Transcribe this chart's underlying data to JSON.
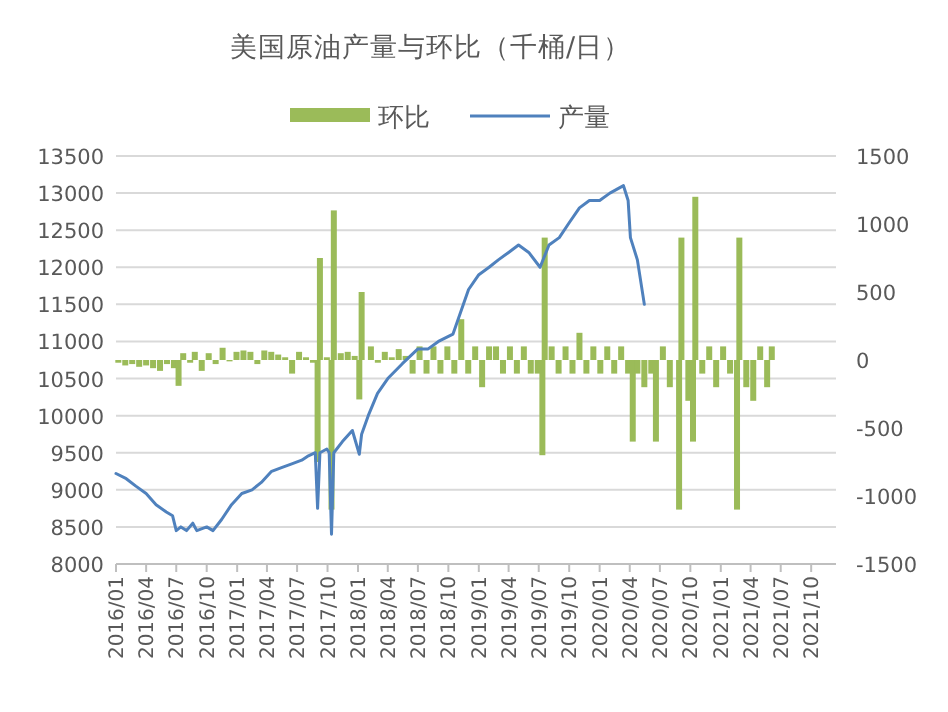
{
  "chart_data": {
    "type": "bar",
    "title": "美国原油产量与环比（千桶/日）",
    "xlim": [
      "2016-01-01",
      "2021-12-15"
    ],
    "xticks": [
      {
        "value": "2016-01-01",
        "label": "2016/01"
      },
      {
        "value": "2016-04-01",
        "label": "2016/04"
      },
      {
        "value": "2016-07-01",
        "label": "2016/07"
      },
      {
        "value": "2016-10-01",
        "label": "2016/10"
      },
      {
        "value": "2017-01-01",
        "label": "2017/01"
      },
      {
        "value": "2017-04-01",
        "label": "2017/04"
      },
      {
        "value": "2017-07-01",
        "label": "2017/07"
      },
      {
        "value": "2017-10-01",
        "label": "2017/10"
      },
      {
        "value": "2018-01-01",
        "label": "2018/01"
      },
      {
        "value": "2018-04-01",
        "label": "2018/04"
      },
      {
        "value": "2018-07-01",
        "label": "2018/07"
      },
      {
        "value": "2018-10-01",
        "label": "2018/10"
      },
      {
        "value": "2019-01-01",
        "label": "2019/01"
      },
      {
        "value": "2019-04-01",
        "label": "2019/04"
      },
      {
        "value": "2019-07-01",
        "label": "2019/07"
      },
      {
        "value": "2019-10-01",
        "label": "2019/10"
      },
      {
        "value": "2020-01-01",
        "label": "2020/01"
      },
      {
        "value": "2020-04-01",
        "label": "2020/04"
      },
      {
        "value": "2020-07-01",
        "label": "2020/07"
      },
      {
        "value": "2020-10-01",
        "label": "2020/10"
      },
      {
        "value": "2021-01-01",
        "label": "2021/01"
      },
      {
        "value": "2021-04-01",
        "label": "2021/04"
      },
      {
        "value": "2021-07-01",
        "label": "2021/07"
      },
      {
        "value": "2021-10-01",
        "label": "2021/10"
      }
    ],
    "ylim": [
      8000,
      13500
    ],
    "yticks": [
      8000,
      8500,
      9000,
      9500,
      10000,
      10500,
      11000,
      11500,
      12000,
      12500,
      13000,
      13500
    ],
    "y2lim": [
      -1500,
      1500
    ],
    "y2ticks": [
      -1500,
      -1000,
      -500,
      0,
      500,
      1000,
      1500
    ],
    "grid": "y",
    "legend": "top",
    "series": [
      {
        "name": "环比",
        "axis": "y2",
        "color": "#9bbb59",
        "x": [
          "2016-01-08",
          "2016-01-29",
          "2016-02-19",
          "2016-03-11",
          "2016-04-01",
          "2016-04-22",
          "2016-05-13",
          "2016-06-03",
          "2016-06-24",
          "2016-07-08",
          "2016-07-22",
          "2016-08-12",
          "2016-08-26",
          "2016-09-16",
          "2016-10-07",
          "2016-10-28",
          "2016-11-18",
          "2016-12-09",
          "2016-12-30",
          "2017-01-20",
          "2017-02-10",
          "2017-03-03",
          "2017-03-24",
          "2017-04-14",
          "2017-05-05",
          "2017-05-26",
          "2017-06-16",
          "2017-07-07",
          "2017-07-28",
          "2017-08-18",
          "2017-09-01",
          "2017-09-08",
          "2017-09-29",
          "2017-10-13",
          "2017-10-20",
          "2017-11-10",
          "2017-12-01",
          "2017-12-22",
          "2018-01-05",
          "2018-01-12",
          "2018-02-09",
          "2018-03-02",
          "2018-03-23",
          "2018-04-13",
          "2018-05-04",
          "2018-05-25",
          "2018-06-15",
          "2018-07-06",
          "2018-07-27",
          "2018-08-17",
          "2018-09-07",
          "2018-09-28",
          "2018-10-19",
          "2018-11-09",
          "2018-11-30",
          "2018-12-21",
          "2019-01-11",
          "2019-02-01",
          "2019-02-22",
          "2019-03-15",
          "2019-04-05",
          "2019-04-26",
          "2019-05-17",
          "2019-06-07",
          "2019-06-28",
          "2019-07-12",
          "2019-07-19",
          "2019-08-09",
          "2019-08-30",
          "2019-09-20",
          "2019-10-11",
          "2019-11-01",
          "2019-11-22",
          "2019-12-13",
          "2020-01-03",
          "2020-01-24",
          "2020-02-14",
          "2020-03-06",
          "2020-03-27",
          "2020-04-10",
          "2020-04-24",
          "2020-05-15",
          "2020-06-05",
          "2020-06-19",
          "2020-07-10",
          "2020-07-31",
          "2020-08-28",
          "2020-09-04",
          "2020-09-25",
          "2020-10-09",
          "2020-10-16",
          "2020-11-06",
          "2020-11-27",
          "2020-12-18",
          "2021-01-08",
          "2021-01-29",
          "2021-02-19",
          "2021-02-26",
          "2021-03-19",
          "2021-04-09",
          "2021-04-30",
          "2021-05-21",
          "2021-06-04"
        ],
        "values": [
          -20,
          -40,
          -30,
          -50,
          -40,
          -60,
          -80,
          -30,
          -60,
          -190,
          50,
          -20,
          60,
          -80,
          50,
          -30,
          90,
          -10,
          60,
          70,
          60,
          -30,
          70,
          60,
          40,
          20,
          -100,
          60,
          20,
          -20,
          -750,
          750,
          20,
          -1100,
          1100,
          50,
          60,
          30,
          -290,
          500,
          100,
          -20,
          60,
          20,
          80,
          30,
          -100,
          100,
          -100,
          100,
          -100,
          100,
          -100,
          300,
          -100,
          100,
          -200,
          100,
          100,
          -100,
          100,
          -100,
          100,
          -100,
          -100,
          -700,
          900,
          100,
          -100,
          100,
          -100,
          200,
          -100,
          100,
          -100,
          100,
          -100,
          100,
          -100,
          -600,
          -100,
          -200,
          -100,
          -600,
          100,
          -200,
          -1100,
          900,
          -300,
          -600,
          1200,
          -100,
          100,
          -200,
          100,
          -100,
          -1100,
          900,
          -200,
          -300,
          100,
          -200,
          100
        ]
      },
      {
        "name": "产量",
        "type": "line",
        "color": "#4f81bd",
        "x": [
          "2016-01-01",
          "2016-02-01",
          "2016-03-01",
          "2016-04-01",
          "2016-05-01",
          "2016-06-01",
          "2016-06-20",
          "2016-07-01",
          "2016-07-15",
          "2016-08-01",
          "2016-08-20",
          "2016-09-01",
          "2016-10-01",
          "2016-10-20",
          "2016-11-15",
          "2016-12-15",
          "2017-01-15",
          "2017-02-15",
          "2017-03-15",
          "2017-04-15",
          "2017-05-15",
          "2017-06-15",
          "2017-07-15",
          "2017-08-01",
          "2017-08-25",
          "2017-09-01",
          "2017-09-08",
          "2017-09-29",
          "2017-10-06",
          "2017-10-13",
          "2017-10-20",
          "2017-11-15",
          "2017-12-15",
          "2018-01-05",
          "2018-01-12",
          "2018-02-01",
          "2018-03-01",
          "2018-04-01",
          "2018-05-15",
          "2018-07-01",
          "2018-08-01",
          "2018-09-01",
          "2018-10-15",
          "2018-12-01",
          "2019-01-01",
          "2019-02-01",
          "2019-03-01",
          "2019-04-01",
          "2019-05-01",
          "2019-06-01",
          "2019-07-05",
          "2019-08-01",
          "2019-09-01",
          "2019-10-01",
          "2019-11-01",
          "2019-12-01",
          "2020-01-01",
          "2020-02-01",
          "2020-03-13",
          "2020-03-27",
          "2020-04-03",
          "2020-04-24",
          "2020-05-15"
        ],
        "values": [
          9220,
          9150,
          9050,
          8950,
          8800,
          8700,
          8650,
          8450,
          8500,
          8450,
          8550,
          8450,
          8500,
          8450,
          8600,
          8800,
          8950,
          9000,
          9100,
          9250,
          9300,
          9350,
          9400,
          9450,
          9500,
          8750,
          9500,
          9550,
          9500,
          8400,
          9500,
          9650,
          9800,
          9480,
          9750,
          10000,
          10300,
          10500,
          10700,
          10900,
          10900,
          11000,
          11100,
          11700,
          11900,
          12000,
          12100,
          12200,
          12300,
          12200,
          12000,
          12300,
          12400,
          12600,
          12800,
          12900,
          12900,
          13000,
          13100,
          12900,
          12400,
          12100,
          11500
        ]
      }
    ]
  }
}
